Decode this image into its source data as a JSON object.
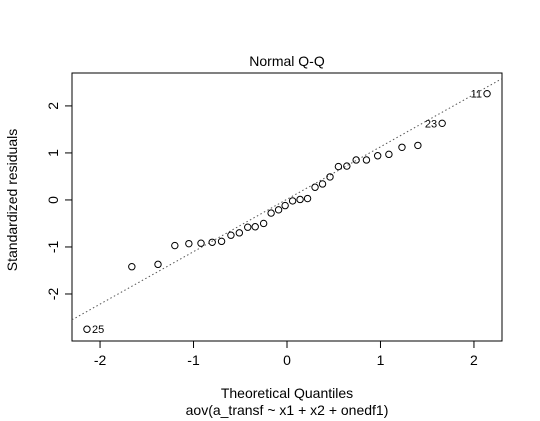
{
  "chart_data": {
    "type": "scatter",
    "title": "Normal Q-Q",
    "xlabel": "Theoretical Quantiles",
    "subtitle": "aov(a_transf ~ x1 + x2 + onedf1)",
    "ylabel": "Standardized residuals",
    "xlim": [
      -2.3,
      2.3
    ],
    "ylim": [
      -3.0,
      2.7
    ],
    "xticks": [
      -2,
      -1,
      0,
      1,
      2
    ],
    "xtick_labels": [
      "-2",
      "-1",
      "0",
      "1",
      "2"
    ],
    "yticks": [
      -2,
      -1,
      0,
      1,
      2
    ],
    "ytick_labels": [
      "-2",
      "-1",
      "0",
      "1",
      "2"
    ],
    "grid": false,
    "reference_line": {
      "style": "dotted",
      "points": [
        [
          -2.3,
          -2.55
        ],
        [
          2.3,
          2.58
        ]
      ]
    },
    "x": [
      -2.14,
      -1.66,
      -1.38,
      -1.2,
      -1.05,
      -0.92,
      -0.8,
      -0.7,
      -0.6,
      -0.51,
      -0.42,
      -0.34,
      -0.25,
      -0.17,
      -0.09,
      -0.02,
      0.06,
      0.14,
      0.22,
      0.3,
      0.38,
      0.46,
      0.55,
      0.64,
      0.74,
      0.85,
      0.97,
      1.09,
      1.23,
      1.4,
      1.66,
      2.14
    ],
    "y": [
      -2.75,
      -1.42,
      -1.37,
      -0.97,
      -0.93,
      -0.92,
      -0.9,
      -0.88,
      -0.75,
      -0.7,
      -0.58,
      -0.57,
      -0.5,
      -0.28,
      -0.21,
      -0.12,
      -0.02,
      0.01,
      0.03,
      0.27,
      0.34,
      0.49,
      0.71,
      0.72,
      0.85,
      0.85,
      0.94,
      0.97,
      1.12,
      1.16,
      1.63,
      2.26
    ],
    "point_labels": [
      {
        "index": 0,
        "text": "25",
        "side": "right"
      },
      {
        "index": 30,
        "text": "23",
        "side": "left"
      },
      {
        "index": 31,
        "text": "11",
        "side": "left"
      }
    ]
  }
}
